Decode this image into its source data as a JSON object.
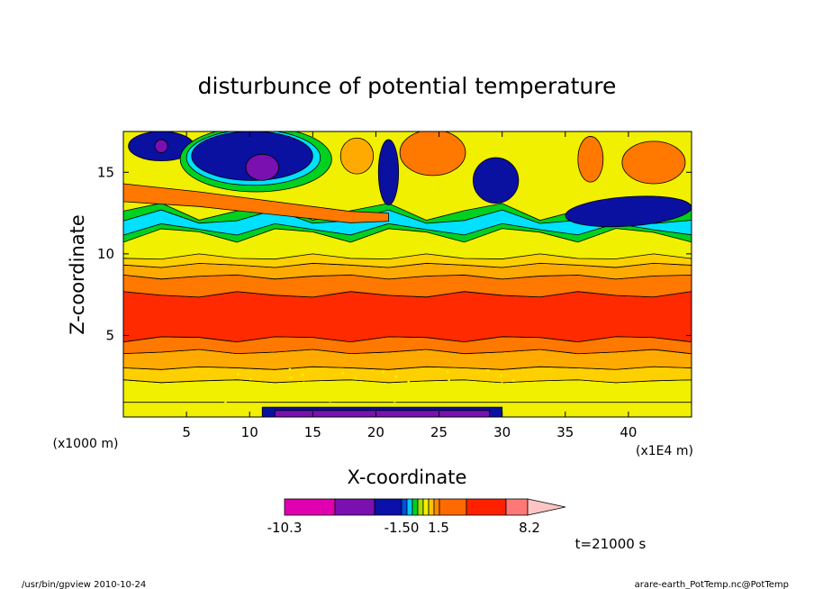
{
  "chart_data": {
    "type": "contour",
    "title": "disturbunce of potential temperature",
    "xlabel": "X-coordinate",
    "ylabel": "Z-coordinate",
    "x_unit_left": "(x1000 m)",
    "x_unit_right": "(x1E4 m)",
    "xlim": [
      0,
      45
    ],
    "ylim": [
      0,
      17.5
    ],
    "x_ticks": [
      5,
      10,
      15,
      20,
      25,
      30,
      35,
      40
    ],
    "y_ticks": [
      5,
      10,
      15
    ],
    "colorbar": {
      "labels": [
        {
          "text": "-10.3",
          "value": -10.3
        },
        {
          "text": "-1.50",
          "value": -1.5
        },
        {
          "text": "1.5",
          "value": 1.5
        },
        {
          "text": "8.2",
          "value": 8.2
        }
      ],
      "colors": [
        "#e000b0",
        "#7a10b0",
        "#0a10a8",
        "#0050e0",
        "#00c8ff",
        "#00d020",
        "#a8e000",
        "#f0f000",
        "#ffc400",
        "#ff8800",
        "#ff6a00",
        "#ff2000",
        "#ff7878",
        "#ffc4c4"
      ]
    },
    "time_label": "t=21000 s",
    "grid": false,
    "legend": "bottom-colorbar"
  },
  "footer": {
    "left": "/usr/bin/gpview  2010-10-24",
    "right": "arare-earth_PotTemp.nc@PotTemp"
  },
  "colors": {
    "yellow": "#f0f000",
    "yellow_orange": "#ffd000",
    "orange_light": "#ffaa00",
    "orange": "#ff7800",
    "red": "#ff2a00",
    "green": "#00d020",
    "cyan": "#00e0ff",
    "blue": "#0030d0",
    "navy": "#0a10a0",
    "purple": "#7a10b0",
    "magenta": "#e000b0"
  }
}
